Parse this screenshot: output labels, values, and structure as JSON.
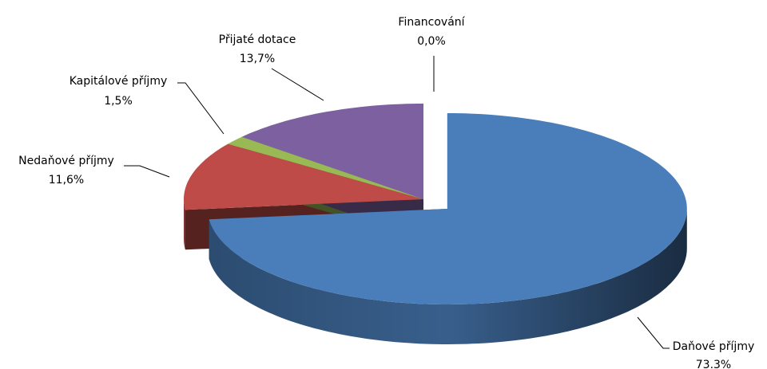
{
  "chart_data": {
    "type": "pie",
    "categories": [
      "Daňové příjmy",
      "Nedaňové příjmy",
      "Kapitálové příjmy",
      "Přijaté dotace",
      "Financování"
    ],
    "values": [
      73.3,
      11.6,
      1.5,
      13.7,
      0.0
    ],
    "value_labels": [
      "73.3%",
      "11,6%",
      "1,5%",
      "13,7%",
      "0,0%"
    ],
    "colors": [
      "#4a7ebb",
      "#be4b48",
      "#98b954",
      "#7d60a0",
      "#46aac5"
    ]
  }
}
